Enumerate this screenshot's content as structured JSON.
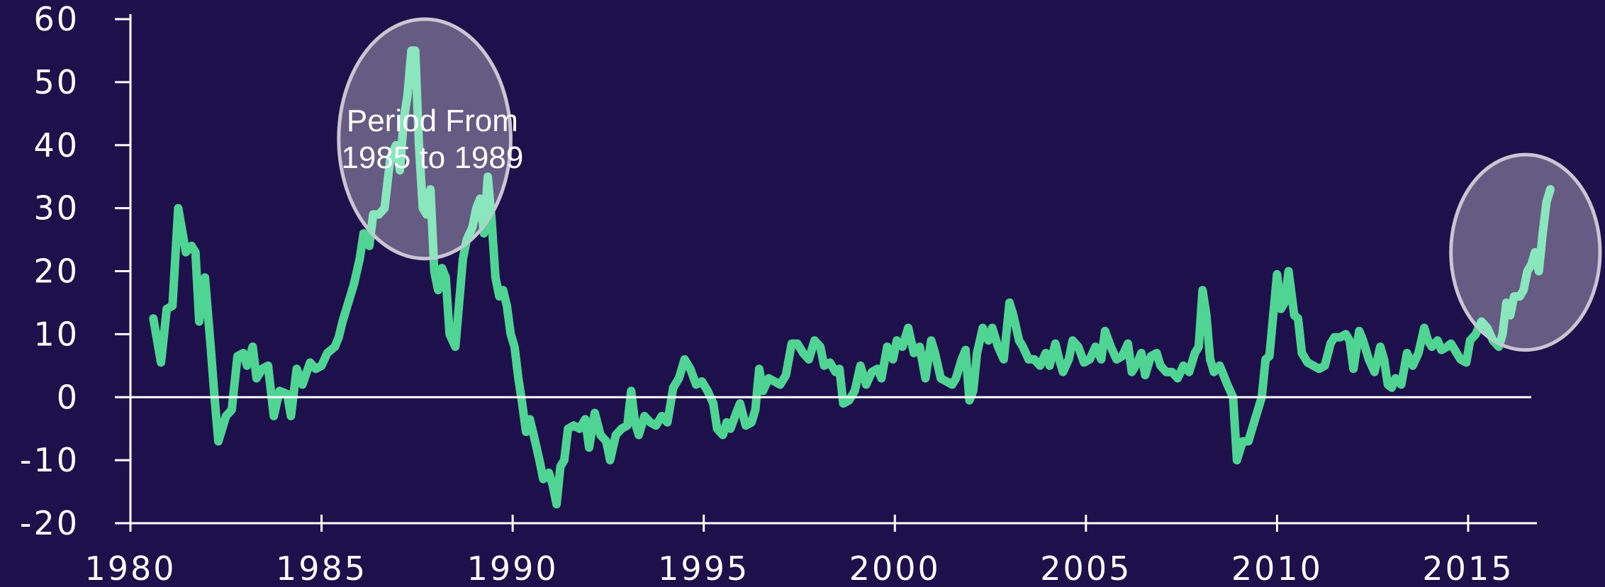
{
  "chart_data": {
    "type": "line",
    "title": "",
    "xlabel": "",
    "ylabel": "",
    "xlim": [
      1980,
      2016.8
    ],
    "ylim": [
      -20,
      60
    ],
    "xticks": [
      1980,
      1985,
      1990,
      1995,
      2000,
      2005,
      2010,
      2015
    ],
    "yticks": [
      -20,
      -10,
      0,
      10,
      20,
      30,
      40,
      50,
      60
    ],
    "grid": false,
    "legend": "none",
    "line_color": "#4fd494",
    "highlight_color": "#8ae6bd",
    "annotation": {
      "text_line1": "Period From",
      "text_line2": "1985 to 1989",
      "x": 1987.9,
      "y": 40
    },
    "highlight_ellipses": [
      {
        "cx": 1987.7,
        "cy": 41,
        "rx": 2.25,
        "ry": 19
      },
      {
        "cx": 2016.5,
        "cy": 23,
        "rx": 1.95,
        "ry": 15.5
      }
    ],
    "series": [
      {
        "values": [
          [
            1980.6,
            12.5
          ],
          [
            1980.8,
            5.5
          ],
          [
            1980.95,
            14
          ],
          [
            1981.1,
            14.5
          ],
          [
            1981.25,
            30
          ],
          [
            1981.45,
            23
          ],
          [
            1981.6,
            24
          ],
          [
            1981.7,
            23
          ],
          [
            1981.8,
            12
          ],
          [
            1981.95,
            19
          ],
          [
            1982.1,
            8
          ],
          [
            1982.2,
            0
          ],
          [
            1982.3,
            -7
          ],
          [
            1982.5,
            -3
          ],
          [
            1982.65,
            -2
          ],
          [
            1982.8,
            6.5
          ],
          [
            1982.95,
            7
          ],
          [
            1983.05,
            5
          ],
          [
            1983.2,
            8
          ],
          [
            1983.3,
            3
          ],
          [
            1983.45,
            4.5
          ],
          [
            1983.6,
            5
          ],
          [
            1983.75,
            -3
          ],
          [
            1983.9,
            1
          ],
          [
            1984.1,
            0.5
          ],
          [
            1984.2,
            -3
          ],
          [
            1984.35,
            4.5
          ],
          [
            1984.5,
            2
          ],
          [
            1984.7,
            5.5
          ],
          [
            1984.85,
            4.5
          ],
          [
            1985.0,
            5
          ],
          [
            1985.15,
            7
          ],
          [
            1985.35,
            8
          ],
          [
            1985.45,
            9.5
          ],
          [
            1985.55,
            12
          ],
          [
            1985.65,
            14
          ],
          [
            1985.75,
            16
          ],
          [
            1985.85,
            18
          ],
          [
            1986.0,
            22
          ],
          [
            1986.1,
            26
          ],
          [
            1986.25,
            24
          ],
          [
            1986.35,
            29
          ],
          [
            1986.5,
            29
          ],
          [
            1986.65,
            30
          ],
          [
            1986.8,
            38
          ],
          [
            1986.95,
            40
          ],
          [
            1987.05,
            36
          ],
          [
            1987.15,
            44
          ],
          [
            1987.25,
            48
          ],
          [
            1987.35,
            55
          ],
          [
            1987.45,
            55
          ],
          [
            1987.55,
            40
          ],
          [
            1987.65,
            30
          ],
          [
            1987.75,
            29
          ],
          [
            1987.85,
            33
          ],
          [
            1987.95,
            20
          ],
          [
            1988.05,
            17
          ],
          [
            1988.15,
            20.5
          ],
          [
            1988.25,
            19
          ],
          [
            1988.35,
            10
          ],
          [
            1988.5,
            8
          ],
          [
            1988.6,
            15
          ],
          [
            1988.7,
            22
          ],
          [
            1988.8,
            25
          ],
          [
            1988.95,
            27
          ],
          [
            1989.05,
            30
          ],
          [
            1989.15,
            31.5
          ],
          [
            1989.25,
            26
          ],
          [
            1989.35,
            35
          ],
          [
            1989.45,
            28
          ],
          [
            1989.55,
            19
          ],
          [
            1989.65,
            16
          ],
          [
            1989.75,
            17
          ],
          [
            1989.85,
            14.5
          ],
          [
            1989.95,
            10
          ],
          [
            1990.05,
            8
          ],
          [
            1990.15,
            3
          ],
          [
            1990.25,
            -1
          ],
          [
            1990.35,
            -5.5
          ],
          [
            1990.45,
            -3.5
          ],
          [
            1990.55,
            -6
          ],
          [
            1990.7,
            -10
          ],
          [
            1990.8,
            -13
          ],
          [
            1990.95,
            -12
          ],
          [
            1991.05,
            -14
          ],
          [
            1991.15,
            -17
          ],
          [
            1991.25,
            -11
          ],
          [
            1991.35,
            -10
          ],
          [
            1991.45,
            -5
          ],
          [
            1991.6,
            -4.5
          ],
          [
            1991.75,
            -5
          ],
          [
            1991.9,
            -3.5
          ],
          [
            1992.0,
            -8
          ],
          [
            1992.15,
            -2.5
          ],
          [
            1992.3,
            -6
          ],
          [
            1992.45,
            -7
          ],
          [
            1992.55,
            -10
          ],
          [
            1992.7,
            -6
          ],
          [
            1992.85,
            -5
          ],
          [
            1993.0,
            -4.5
          ],
          [
            1993.1,
            1
          ],
          [
            1993.2,
            -4
          ],
          [
            1993.3,
            -6
          ],
          [
            1993.45,
            -3
          ],
          [
            1993.6,
            -4
          ],
          [
            1993.75,
            -4.5
          ],
          [
            1993.9,
            -3
          ],
          [
            1994.05,
            -4
          ],
          [
            1994.2,
            1.5
          ],
          [
            1994.35,
            3
          ],
          [
            1994.5,
            6
          ],
          [
            1994.65,
            4.5
          ],
          [
            1994.8,
            2
          ],
          [
            1994.95,
            2.5
          ],
          [
            1995.1,
            1
          ],
          [
            1995.25,
            -1
          ],
          [
            1995.35,
            -5
          ],
          [
            1995.5,
            -6
          ],
          [
            1995.6,
            -4
          ],
          [
            1995.7,
            -5
          ],
          [
            1995.85,
            -2.5
          ],
          [
            1995.95,
            -1
          ],
          [
            1996.1,
            -4.5
          ],
          [
            1996.25,
            -4
          ],
          [
            1996.35,
            -2
          ],
          [
            1996.45,
            4.5
          ],
          [
            1996.55,
            1
          ],
          [
            1996.7,
            3
          ],
          [
            1996.85,
            2.5
          ],
          [
            1997.0,
            2
          ],
          [
            1997.15,
            3.5
          ],
          [
            1997.3,
            8.5
          ],
          [
            1997.45,
            8.5
          ],
          [
            1997.6,
            7
          ],
          [
            1997.75,
            6
          ],
          [
            1997.9,
            9
          ],
          [
            1998.05,
            8
          ],
          [
            1998.15,
            5
          ],
          [
            1998.3,
            5.5
          ],
          [
            1998.45,
            4
          ],
          [
            1998.55,
            4.5
          ],
          [
            1998.65,
            -1
          ],
          [
            1998.8,
            -0.5
          ],
          [
            1998.95,
            1
          ],
          [
            1999.1,
            5
          ],
          [
            1999.25,
            2
          ],
          [
            1999.4,
            4
          ],
          [
            1999.55,
            4.5
          ],
          [
            1999.65,
            3
          ],
          [
            1999.8,
            8
          ],
          [
            1999.95,
            6
          ],
          [
            2000.05,
            9
          ],
          [
            2000.2,
            8
          ],
          [
            2000.35,
            11
          ],
          [
            2000.5,
            7
          ],
          [
            2000.65,
            8
          ],
          [
            2000.8,
            3
          ],
          [
            2000.95,
            9
          ],
          [
            2001.05,
            7
          ],
          [
            2001.2,
            3
          ],
          [
            2001.35,
            2.5
          ],
          [
            2001.5,
            2
          ],
          [
            2001.6,
            3
          ],
          [
            2001.75,
            6
          ],
          [
            2001.85,
            7.5
          ],
          [
            2001.95,
            -0.5
          ],
          [
            2002.05,
            1
          ],
          [
            2002.15,
            7
          ],
          [
            2002.3,
            11
          ],
          [
            2002.45,
            9
          ],
          [
            2002.55,
            11
          ],
          [
            2002.7,
            8
          ],
          [
            2002.85,
            6
          ],
          [
            2003.0,
            15
          ],
          [
            2003.1,
            13
          ],
          [
            2003.25,
            9
          ],
          [
            2003.35,
            8
          ],
          [
            2003.5,
            6
          ],
          [
            2003.65,
            6
          ],
          [
            2003.8,
            5
          ],
          [
            2003.95,
            7
          ],
          [
            2004.05,
            5
          ],
          [
            2004.2,
            8.5
          ],
          [
            2004.3,
            6
          ],
          [
            2004.4,
            4
          ],
          [
            2004.55,
            6
          ],
          [
            2004.65,
            9
          ],
          [
            2004.8,
            8
          ],
          [
            2004.95,
            5.5
          ],
          [
            2005.1,
            6
          ],
          [
            2005.25,
            8
          ],
          [
            2005.4,
            6
          ],
          [
            2005.5,
            10.5
          ],
          [
            2005.65,
            8
          ],
          [
            2005.8,
            6
          ],
          [
            2005.95,
            6.5
          ],
          [
            2006.1,
            8.5
          ],
          [
            2006.2,
            4
          ],
          [
            2006.35,
            5.5
          ],
          [
            2006.45,
            7
          ],
          [
            2006.55,
            3.5
          ],
          [
            2006.7,
            6.5
          ],
          [
            2006.85,
            7
          ],
          [
            2006.95,
            5
          ],
          [
            2007.1,
            4
          ],
          [
            2007.25,
            4
          ],
          [
            2007.4,
            3
          ],
          [
            2007.55,
            5
          ],
          [
            2007.7,
            4
          ],
          [
            2007.85,
            7
          ],
          [
            2007.95,
            8
          ],
          [
            2008.05,
            17
          ],
          [
            2008.15,
            13
          ],
          [
            2008.25,
            6
          ],
          [
            2008.35,
            4
          ],
          [
            2008.5,
            5
          ],
          [
            2008.6,
            3.5
          ],
          [
            2008.7,
            2
          ],
          [
            2008.85,
            0
          ],
          [
            2008.95,
            -10
          ],
          [
            2009.1,
            -7
          ],
          [
            2009.25,
            -7
          ],
          [
            2009.35,
            -5
          ],
          [
            2009.5,
            -2
          ],
          [
            2009.6,
            0
          ],
          [
            2009.7,
            6
          ],
          [
            2009.8,
            6.5
          ],
          [
            2009.9,
            13
          ],
          [
            2010.0,
            19.5
          ],
          [
            2010.1,
            14
          ],
          [
            2010.2,
            15
          ],
          [
            2010.3,
            20
          ],
          [
            2010.45,
            13
          ],
          [
            2010.55,
            12.5
          ],
          [
            2010.65,
            7
          ],
          [
            2010.8,
            5.5
          ],
          [
            2010.95,
            5
          ],
          [
            2011.1,
            4.5
          ],
          [
            2011.25,
            5
          ],
          [
            2011.4,
            8.5
          ],
          [
            2011.5,
            9.5
          ],
          [
            2011.65,
            9.5
          ],
          [
            2011.8,
            10
          ],
          [
            2011.9,
            9
          ],
          [
            2012.0,
            4.5
          ],
          [
            2012.15,
            10.5
          ],
          [
            2012.25,
            9
          ],
          [
            2012.4,
            6
          ],
          [
            2012.55,
            4
          ],
          [
            2012.7,
            8
          ],
          [
            2012.8,
            6
          ],
          [
            2012.9,
            2
          ],
          [
            2013.0,
            1.5
          ],
          [
            2013.1,
            3
          ],
          [
            2013.25,
            2
          ],
          [
            2013.4,
            7
          ],
          [
            2013.55,
            5
          ],
          [
            2013.7,
            7
          ],
          [
            2013.85,
            11
          ],
          [
            2013.95,
            9
          ],
          [
            2014.05,
            8
          ],
          [
            2014.2,
            9
          ],
          [
            2014.3,
            7.5
          ],
          [
            2014.45,
            8
          ],
          [
            2014.55,
            8.5
          ],
          [
            2014.7,
            7
          ],
          [
            2014.8,
            6
          ],
          [
            2014.95,
            5.5
          ],
          [
            2015.05,
            9
          ],
          [
            2015.2,
            10
          ],
          [
            2015.35,
            12
          ],
          [
            2015.5,
            11
          ],
          [
            2015.65,
            9
          ],
          [
            2015.8,
            8
          ],
          [
            2015.9,
            10
          ],
          [
            2016.0,
            15
          ],
          [
            2016.1,
            13
          ],
          [
            2016.2,
            16
          ],
          [
            2016.35,
            16
          ],
          [
            2016.45,
            17
          ],
          [
            2016.55,
            20
          ],
          [
            2016.65,
            21
          ],
          [
            2016.75,
            23
          ],
          [
            2016.85,
            20
          ],
          [
            2016.95,
            26
          ],
          [
            2017.05,
            31
          ],
          [
            2017.15,
            33
          ]
        ]
      }
    ]
  }
}
